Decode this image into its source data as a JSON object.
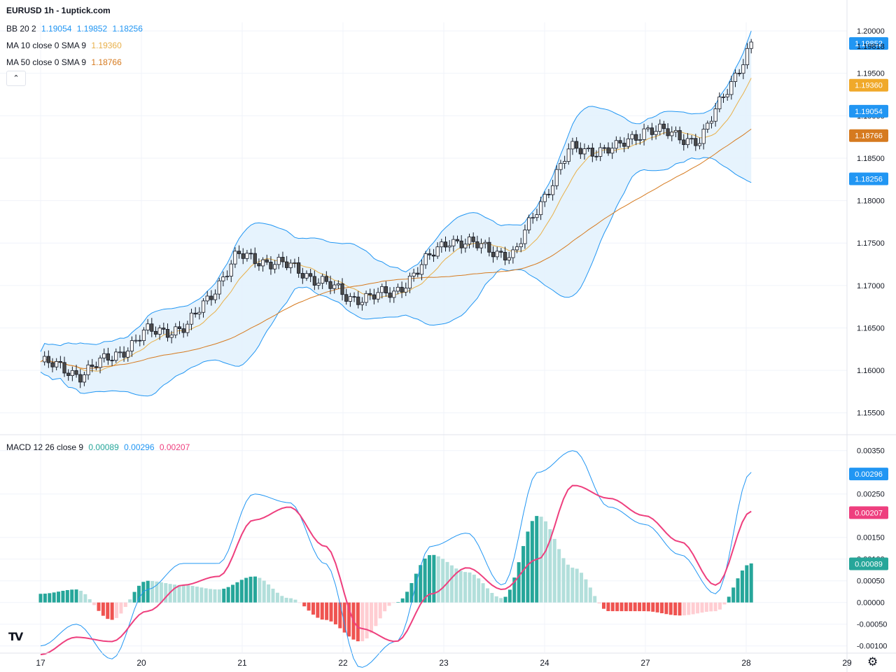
{
  "header": {
    "title": "EURUSD 1h - 1uptick.com"
  },
  "legend": {
    "bb": {
      "label": "BB 20 2",
      "middle": "1.19054",
      "upper": "1.19852",
      "lower": "1.18256"
    },
    "ma10": {
      "label": "MA 10 close 0 SMA 9",
      "value": "1.19360"
    },
    "ma50": {
      "label": "MA 50 close 0 SMA 9",
      "value": "1.18766"
    },
    "macd": {
      "label": "MACD 12 26 close 9",
      "hist": "0.00089",
      "macd": "0.00296",
      "signal": "0.00207"
    }
  },
  "colors": {
    "bb": "#2196f3",
    "bb_fill": "#e3f2fd",
    "ma10": "#e8b04a",
    "ma50": "#d67a1f",
    "macd_line": "#2196f3",
    "signal_line": "#ee3f7e",
    "hist_pos_strong": "#26a69a",
    "hist_pos_weak": "#b2dfdb",
    "hist_neg_strong": "#ef5350",
    "hist_neg_weak": "#ffcdd2",
    "candle_up": "#ffffff",
    "candle_down": "#4a4a4a"
  },
  "icons": {
    "collapse": "chevron-up-icon",
    "logo": "tradingview-logo-icon",
    "settings": "gear-icon"
  },
  "logo_text": "TV",
  "chart_data": [
    {
      "type": "candlestick",
      "title": "EURUSD 1h",
      "ylim": [
        1.1525,
        1.201
      ],
      "y_ticks": [
        "1.15500",
        "1.16000",
        "1.16500",
        "1.17000",
        "1.17500",
        "1.18000",
        "1.18500",
        "1.19000",
        "1.19500",
        "1.20000"
      ],
      "x_ticks": [
        "17",
        "20",
        "21",
        "22",
        "23",
        "24",
        "27",
        "28",
        "29"
      ],
      "last_close": "1.19818",
      "price_labels": [
        {
          "value": "1.19852",
          "series": "BB upper"
        },
        {
          "value": "1.19818",
          "series": "last close"
        },
        {
          "value": "1.19360",
          "series": "MA 10"
        },
        {
          "value": "1.19054",
          "series": "BB middle"
        },
        {
          "value": "1.18766",
          "series": "MA 50"
        },
        {
          "value": "1.18256",
          "series": "BB lower"
        }
      ],
      "close_path_anchors": [
        {
          "day": "17",
          "x": 0.0,
          "close": 1.161
        },
        {
          "day": "17",
          "x": 0.4,
          "close": 1.1595
        },
        {
          "day": "17",
          "x": 0.9,
          "close": 1.163
        },
        {
          "day": "20",
          "x": 1.05,
          "close": 1.1645
        },
        {
          "day": "20",
          "x": 1.45,
          "close": 1.165
        },
        {
          "day": "20",
          "x": 1.75,
          "close": 1.17
        },
        {
          "day": "21",
          "x": 1.95,
          "close": 1.1735
        },
        {
          "day": "21",
          "x": 2.4,
          "close": 1.1725
        },
        {
          "day": "22",
          "x": 2.8,
          "close": 1.1705
        },
        {
          "day": "22",
          "x": 3.05,
          "close": 1.1685
        },
        {
          "day": "22",
          "x": 3.5,
          "close": 1.169
        },
        {
          "day": "23",
          "x": 4.05,
          "close": 1.1755
        },
        {
          "day": "23",
          "x": 4.7,
          "close": 1.1735
        },
        {
          "day": "24",
          "x": 4.9,
          "close": 1.1785
        },
        {
          "day": "24",
          "x": 5.25,
          "close": 1.186
        },
        {
          "day": "24",
          "x": 5.7,
          "close": 1.186
        },
        {
          "day": "27",
          "x": 6.0,
          "close": 1.1885
        },
        {
          "day": "27",
          "x": 6.55,
          "close": 1.187
        },
        {
          "day": "28",
          "x": 6.8,
          "close": 1.193
        },
        {
          "day": "28",
          "x": 7.05,
          "close": 1.1982
        }
      ],
      "series": [
        {
          "name": "BB 20 2",
          "last": [
            1.19852,
            1.19054,
            1.18256
          ]
        },
        {
          "name": "MA 10 close 0 SMA 9",
          "last": 1.1936
        },
        {
          "name": "MA 50 close 0 SMA 9",
          "last": 1.18766
        }
      ]
    },
    {
      "type": "line+bar",
      "title": "MACD 12 26 close 9",
      "ylim": [
        -0.00115,
        0.00385
      ],
      "y_ticks": [
        "0.00350",
        "0.00250",
        "0.00150",
        "0.00100",
        "0.00050",
        "0.00000",
        "-0.00050",
        "-0.00100"
      ],
      "series": [
        {
          "name": "MACD",
          "values": [
            -0.001,
            -0.0005,
            -0.0013,
            0.0003,
            0.0009,
            0.0009,
            0.0025,
            0.0023,
            0.0009,
            -0.0015,
            -0.0009,
            0.0013,
            0.0016,
            0.0004,
            0.003,
            0.0035,
            0.0022,
            0.0018,
            0.0011,
            0.0002,
            0.003
          ]
        },
        {
          "name": "Signal",
          "values": [
            -0.0012,
            -0.0008,
            -0.0009,
            -0.0002,
            0.0004,
            0.0006,
            0.0019,
            0.0022,
            0.0013,
            -0.0006,
            -0.0009,
            0.0002,
            0.0008,
            0.0003,
            0.001,
            0.0027,
            0.0024,
            0.002,
            0.0014,
            0.0004,
            0.0021
          ]
        },
        {
          "name": "Histogram",
          "values": [
            0.0002,
            0.0003,
            -0.0004,
            0.0005,
            0.0004,
            0.0003,
            0.0006,
            0.0001,
            -0.0004,
            -0.0009,
            0.0,
            0.0011,
            0.0007,
            0.0001,
            0.002,
            0.0008,
            -0.0002,
            -0.0002,
            -0.0003,
            -0.0002,
            0.0009
          ]
        }
      ],
      "last": {
        "hist": 0.00089,
        "macd": 0.00296,
        "signal": 0.00207
      }
    }
  ]
}
